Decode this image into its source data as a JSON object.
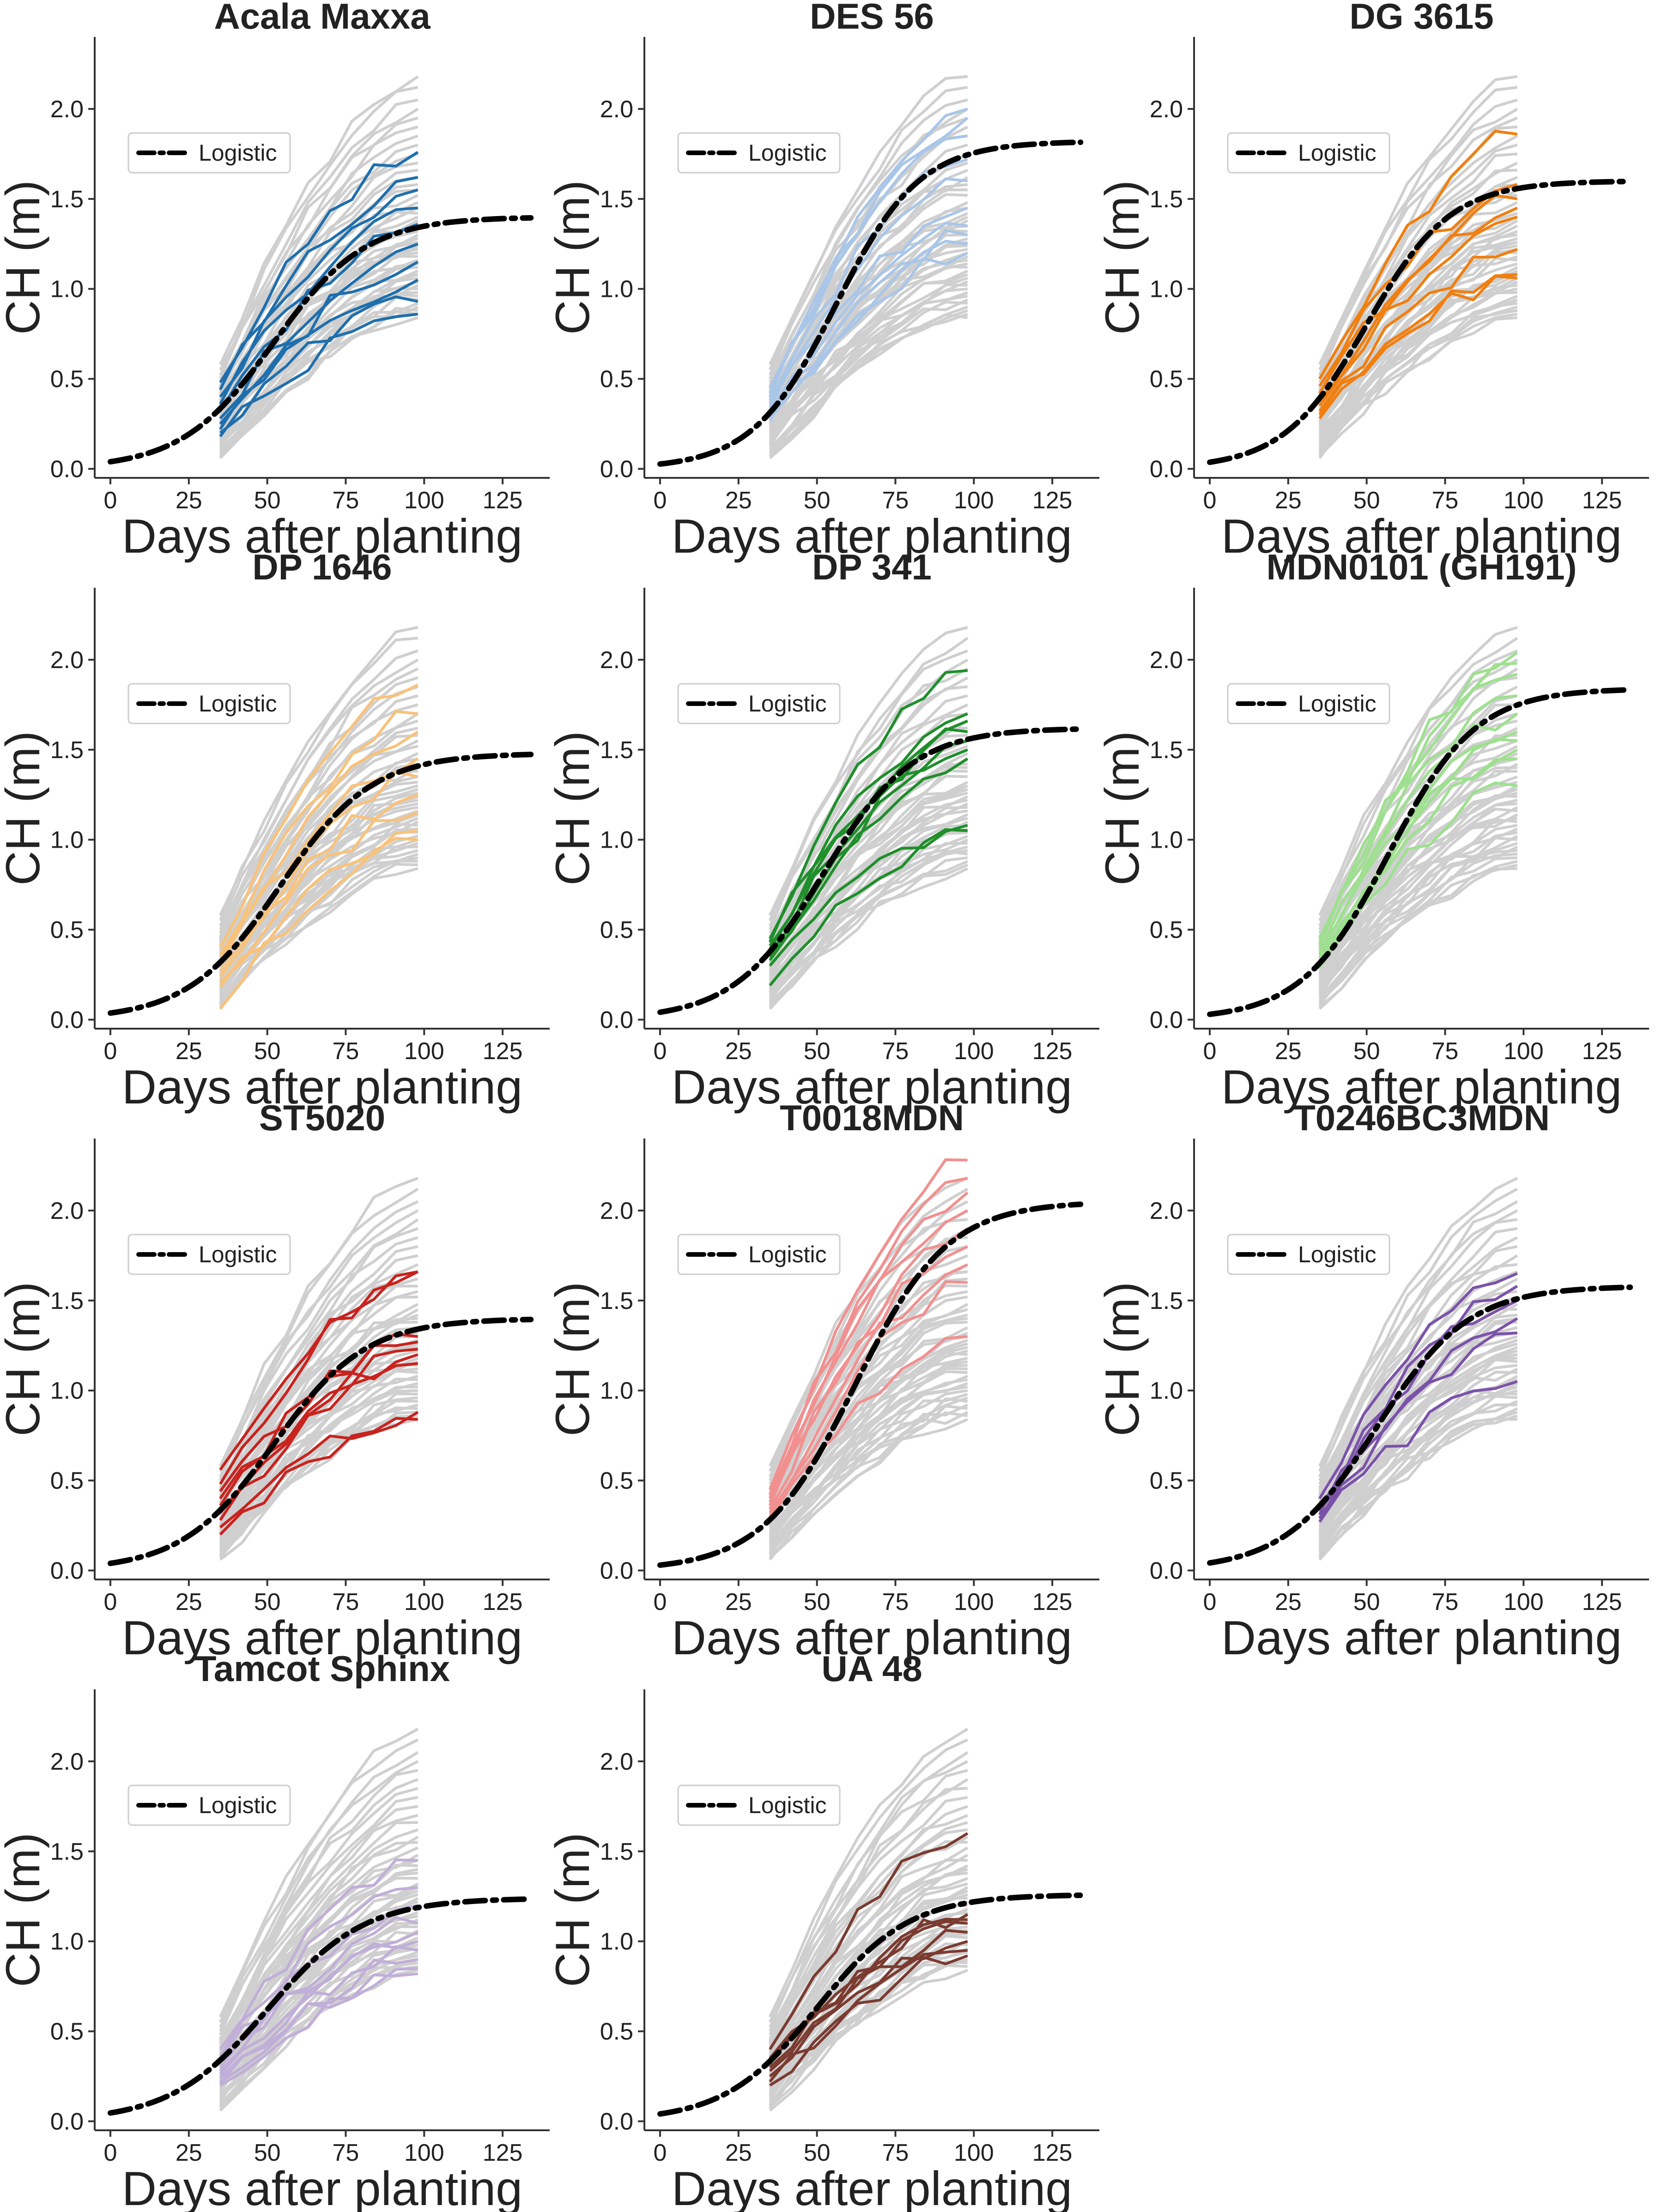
{
  "figure": {
    "panels": [
      "Acala Maxxa",
      "DES 56",
      "DG 3615",
      "DP 1646",
      "DP 341",
      "MDN0101 (GH191)",
      "ST5020",
      "T0018MDN",
      "T0246BC3MDN",
      "Tamcot Sphinx",
      "UA 48"
    ]
  },
  "chart_data": {
    "type": "line",
    "layout": "small multiples, 4 rows x 3 columns (11 panels)",
    "xlabel": "Days after planting",
    "ylabel": "CH (m)",
    "xlim": [
      -5,
      140
    ],
    "ylim": [
      -0.05,
      2.4
    ],
    "xticks": [
      0,
      25,
      50,
      75,
      100,
      125
    ],
    "xtick_labels": [
      "0",
      "25",
      "50",
      "75",
      "100",
      "125"
    ],
    "yticks": [
      0.0,
      0.5,
      1.0,
      1.5,
      2.0
    ],
    "ytick_labels": [
      "0.0",
      "0.5",
      "1.0",
      "1.5",
      "2.0"
    ],
    "legend": {
      "label": "Logistic",
      "placement": "upper-left"
    },
    "background_series_color": "#cfcfcf",
    "logistic_color": "#000000",
    "panels": [
      {
        "title": "Acala Maxxa",
        "color": "#1f6fad",
        "logistic": {
          "K": 1.4,
          "r": 0.068,
          "t0": 52
        },
        "final_heights": [
          1.76,
          1.62,
          1.55,
          1.45,
          1.36,
          1.25,
          1.15,
          1.05,
          0.93,
          0.86
        ],
        "start_heights": [
          0.48,
          0.44,
          0.4,
          0.36,
          0.32,
          0.28,
          0.25,
          0.22,
          0.2,
          0.18
        ]
      },
      {
        "title": "DES 56",
        "color": "#a9c6e8",
        "logistic": {
          "K": 1.82,
          "r": 0.075,
          "t0": 56
        },
        "final_heights": [
          2.0,
          1.95,
          1.85,
          1.72,
          1.6,
          1.45,
          1.35,
          1.3,
          1.25,
          1.2
        ],
        "start_heights": [
          0.45,
          0.42,
          0.4,
          0.38,
          0.36,
          0.34,
          0.32,
          0.3,
          0.28,
          0.27
        ]
      },
      {
        "title": "DG 3615",
        "color": "#f07f10",
        "logistic": {
          "K": 1.6,
          "r": 0.075,
          "t0": 50
        },
        "final_heights": [
          1.86,
          1.58,
          1.5,
          1.45,
          1.4,
          1.22,
          1.08,
          1.06
        ],
        "start_heights": [
          0.5,
          0.46,
          0.42,
          0.38,
          0.35,
          0.32,
          0.3,
          0.28
        ]
      },
      {
        "title": "DP 1646",
        "color": "#f9c27a",
        "logistic": {
          "K": 1.48,
          "r": 0.068,
          "t0": 54
        },
        "final_heights": [
          1.86,
          1.7,
          1.6,
          1.45,
          1.35,
          1.25,
          1.15,
          1.05,
          1.0
        ],
        "start_heights": [
          0.4,
          0.36,
          0.33,
          0.3,
          0.27,
          0.24,
          0.21,
          0.18,
          0.06
        ]
      },
      {
        "title": "DP 341",
        "color": "#1e8f2a",
        "logistic": {
          "K": 1.62,
          "r": 0.07,
          "t0": 52
        },
        "final_heights": [
          1.94,
          1.7,
          1.66,
          1.6,
          1.55,
          1.5,
          1.45,
          1.08,
          1.05
        ],
        "start_heights": [
          0.45,
          0.43,
          0.41,
          0.39,
          0.37,
          0.35,
          0.33,
          0.3,
          0.19
        ]
      },
      {
        "title": "MDN0101 (GH191)",
        "color": "#9ee08f",
        "logistic": {
          "K": 1.84,
          "r": 0.072,
          "t0": 57
        },
        "final_heights": [
          2.04,
          1.98,
          1.92,
          1.8,
          1.7,
          1.6,
          1.55,
          1.5,
          1.45,
          1.3
        ],
        "start_heights": [
          0.45,
          0.42,
          0.4,
          0.38,
          0.36,
          0.34,
          0.32,
          0.31,
          0.3,
          0.29
        ]
      },
      {
        "title": "ST5020",
        "color": "#c8231e",
        "logistic": {
          "K": 1.4,
          "r": 0.068,
          "t0": 52
        },
        "final_heights": [
          1.66,
          1.66,
          1.3,
          1.27,
          1.23,
          1.2,
          1.15,
          0.88,
          0.84
        ],
        "start_heights": [
          0.56,
          0.48,
          0.44,
          0.4,
          0.36,
          0.32,
          0.28,
          0.24,
          0.2
        ]
      },
      {
        "title": "T0018MDN",
        "color": "#f29090",
        "logistic": {
          "K": 2.05,
          "r": 0.068,
          "t0": 62
        },
        "final_heights": [
          2.28,
          2.18,
          2.1,
          2.0,
          1.9,
          1.8,
          1.7,
          1.6,
          1.3
        ],
        "start_heights": [
          0.45,
          0.42,
          0.4,
          0.38,
          0.36,
          0.34,
          0.32,
          0.3,
          0.28
        ]
      },
      {
        "title": "T0246BC3MDN",
        "color": "#7b52a9",
        "logistic": {
          "K": 1.58,
          "r": 0.068,
          "t0": 53
        },
        "final_heights": [
          1.65,
          1.58,
          1.5,
          1.4,
          1.32,
          1.05
        ],
        "start_heights": [
          0.4,
          0.36,
          0.33,
          0.31,
          0.29,
          0.27
        ]
      },
      {
        "title": "Tamcot Sphinx",
        "color": "#c0aed8",
        "logistic": {
          "K": 1.24,
          "r": 0.065,
          "t0": 50
        },
        "final_heights": [
          1.45,
          1.3,
          1.2,
          1.1,
          1.05,
          1.0,
          0.95,
          0.9,
          0.85,
          0.82
        ],
        "start_heights": [
          0.4,
          0.36,
          0.33,
          0.3,
          0.28,
          0.26,
          0.24,
          0.22,
          0.21,
          0.2
        ]
      },
      {
        "title": "UA 48",
        "color": "#7b3b30",
        "logistic": {
          "K": 1.26,
          "r": 0.068,
          "t0": 50
        },
        "final_heights": [
          1.6,
          1.15,
          1.12,
          1.1,
          1.05,
          1.0,
          0.95,
          0.92
        ],
        "start_heights": [
          0.4,
          0.35,
          0.32,
          0.3,
          0.28,
          0.25,
          0.22,
          0.2
        ]
      }
    ],
    "background_final_heights": [
      2.18,
      2.12,
      2.05,
      2.0,
      1.95,
      1.9,
      1.85,
      1.8,
      1.75,
      1.7,
      1.66,
      1.62,
      1.58,
      1.55,
      1.52,
      1.48,
      1.45,
      1.42,
      1.4,
      1.38,
      1.35,
      1.32,
      1.3,
      1.28,
      1.26,
      1.24,
      1.22,
      1.2,
      1.18,
      1.16,
      1.14,
      1.12,
      1.1,
      1.08,
      1.06,
      1.04,
      1.02,
      1.0,
      0.98,
      0.96,
      0.94,
      0.92,
      0.9,
      0.88,
      0.86,
      0.84
    ],
    "background_start_heights": [
      0.58,
      0.55,
      0.52,
      0.5,
      0.48,
      0.46,
      0.45,
      0.44,
      0.43,
      0.42,
      0.41,
      0.4,
      0.39,
      0.38,
      0.37,
      0.36,
      0.35,
      0.34,
      0.33,
      0.32,
      0.31,
      0.3,
      0.29,
      0.28,
      0.27,
      0.26,
      0.25,
      0.24,
      0.23,
      0.22,
      0.21,
      0.2,
      0.19,
      0.18,
      0.17,
      0.16,
      0.15,
      0.14,
      0.13,
      0.12,
      0.11,
      0.1,
      0.09,
      0.08,
      0.07,
      0.06
    ],
    "series_days": [
      35,
      42,
      49,
      56,
      63,
      70,
      77,
      84,
      91,
      98
    ]
  }
}
